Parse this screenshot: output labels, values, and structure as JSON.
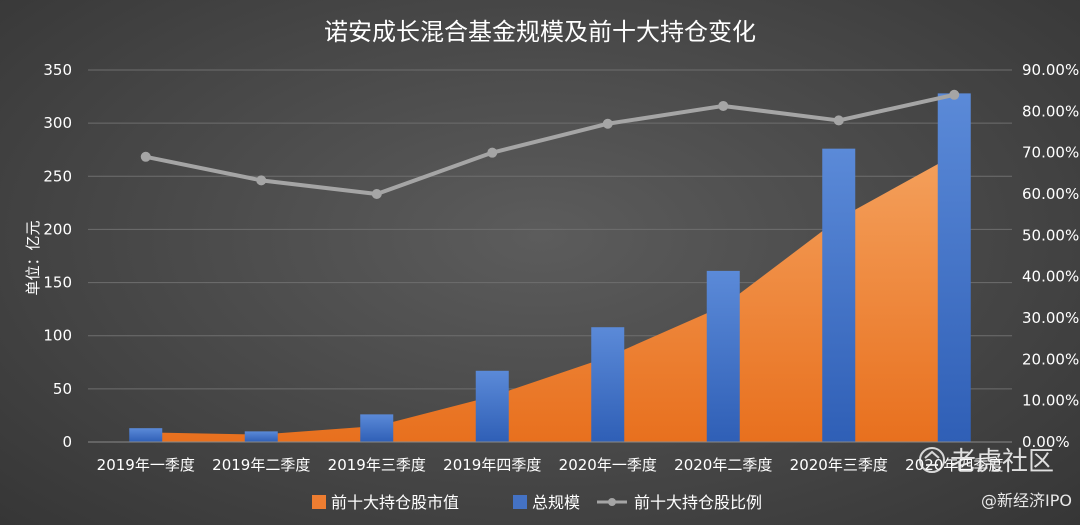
{
  "chart_data": {
    "type": "bar",
    "title": "诺安成长混合基金规模及前十大持仓变化",
    "ylabel": "单位：亿元",
    "categories": [
      "2019年一季度",
      "2019年二季度",
      "2019年三季度",
      "2019年四季度",
      "2020年一季度",
      "2020年二季度",
      "2020年三季度",
      "2020年四季度"
    ],
    "ylim": [
      0,
      350
    ],
    "yticks": [
      0,
      50,
      100,
      150,
      200,
      250,
      300,
      350
    ],
    "y2lim": [
      0,
      90
    ],
    "y2ticks": [
      "0.00%",
      "10.00%",
      "20.00%",
      "30.00%",
      "40.00%",
      "50.00%",
      "60.00%",
      "70.00%",
      "80.00%",
      "90.00%"
    ],
    "grid": true,
    "legend_position": "bottom",
    "series": [
      {
        "name": "前十大持仓股市值",
        "type": "area",
        "axis": "left",
        "color": "#ed7d31",
        "values": [
          9,
          7,
          15,
          43,
          80,
          128,
          210,
          270
        ]
      },
      {
        "name": "总规模",
        "type": "bar",
        "axis": "left",
        "color": "#4472c4",
        "values": [
          13,
          10,
          26,
          67,
          108,
          161,
          276,
          328
        ]
      },
      {
        "name": "前十大持仓股比例",
        "type": "line",
        "axis": "right",
        "color": "#a5a5a5",
        "values": [
          69,
          63.3,
          60,
          70,
          77,
          81.3,
          77.8,
          84
        ]
      }
    ]
  },
  "watermarks": {
    "brand": "老虎社区",
    "account": "@新经济IPO"
  }
}
